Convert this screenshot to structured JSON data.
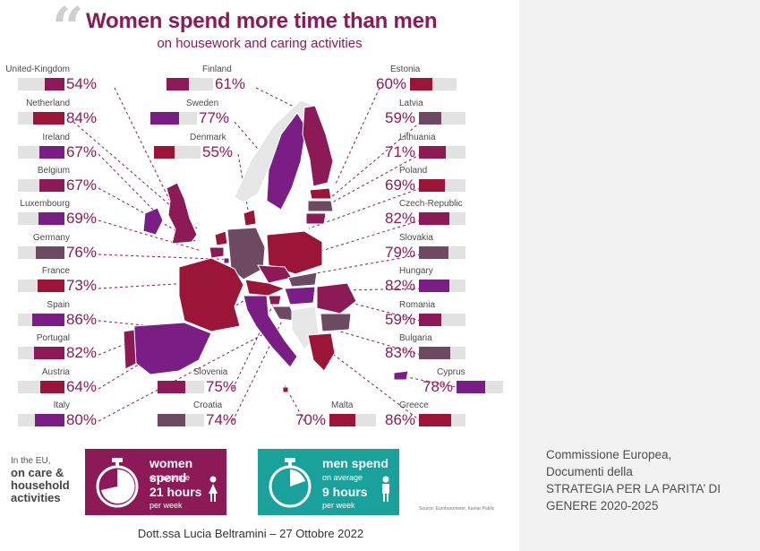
{
  "header": {
    "title": "Women spend more time than men",
    "subtitle": "on housework and caring activities"
  },
  "colors": {
    "brand": "#8c1a56",
    "dark_red": "#9a1538",
    "purple": "#7a1e86",
    "slate": "#6e4a62",
    "teal": "#1aa19b",
    "bar_bg": "#e2e2e2"
  },
  "countries": [
    {
      "name": "United-Kingdom",
      "pct": "54%",
      "value": 54,
      "color": "#8c1a56"
    },
    {
      "name": "Finland",
      "pct": "61%",
      "value": 61,
      "color": "#8c1a56"
    },
    {
      "name": "Estonia",
      "pct": "60%",
      "value": 60,
      "color": "#9a1538"
    },
    {
      "name": "Netherland",
      "pct": "84%",
      "value": 84,
      "color": "#9a1538"
    },
    {
      "name": "Sweden",
      "pct": "77%",
      "value": 77,
      "color": "#7a1e86"
    },
    {
      "name": "Latvia",
      "pct": "59%",
      "value": 59,
      "color": "#6e4a62"
    },
    {
      "name": "Ireland",
      "pct": "67%",
      "value": 67,
      "color": "#7a1e86"
    },
    {
      "name": "Denmark",
      "pct": "55%",
      "value": 55,
      "color": "#9a1538"
    },
    {
      "name": "Lithuania",
      "pct": "71%",
      "value": 71,
      "color": "#8c1a56"
    },
    {
      "name": "Belgium",
      "pct": "67%",
      "value": 67,
      "color": "#8c1a56"
    },
    {
      "name": "Poland",
      "pct": "69%",
      "value": 69,
      "color": "#9a1538"
    },
    {
      "name": "Luxembourg",
      "pct": "69%",
      "value": 69,
      "color": "#7a1e86"
    },
    {
      "name": "Czech-Republic",
      "pct": "82%",
      "value": 82,
      "color": "#8c1a56"
    },
    {
      "name": "Germany",
      "pct": "76%",
      "value": 76,
      "color": "#6e4a62"
    },
    {
      "name": "Slovakia",
      "pct": "79%",
      "value": 79,
      "color": "#6e4a62"
    },
    {
      "name": "France",
      "pct": "73%",
      "value": 73,
      "color": "#9a1538"
    },
    {
      "name": "Hungary",
      "pct": "82%",
      "value": 82,
      "color": "#7a1e86"
    },
    {
      "name": "Spain",
      "pct": "86%",
      "value": 86,
      "color": "#7a1e86"
    },
    {
      "name": "Romania",
      "pct": "59%",
      "value": 59,
      "color": "#8c1a56"
    },
    {
      "name": "Portugal",
      "pct": "82%",
      "value": 82,
      "color": "#8c1a56"
    },
    {
      "name": "Bulgaria",
      "pct": "83%",
      "value": 83,
      "color": "#6e4a62"
    },
    {
      "name": "Austria",
      "pct": "64%",
      "value": 64,
      "color": "#9a1538"
    },
    {
      "name": "Slovenia",
      "pct": "75%",
      "value": 75,
      "color": "#8c1a56"
    },
    {
      "name": "Cyprus",
      "pct": "78%",
      "value": 78,
      "color": "#7a1e86"
    },
    {
      "name": "Italy",
      "pct": "80%",
      "value": 80,
      "color": "#7a1e86"
    },
    {
      "name": "Croatia",
      "pct": "74%",
      "value": 74,
      "color": "#6e4a62"
    },
    {
      "name": "Malta",
      "pct": "70%",
      "value": 70,
      "color": "#9a1538"
    },
    {
      "name": "Greece",
      "pct": "86%",
      "value": 86,
      "color": "#9a1538"
    }
  ],
  "info": {
    "intro_small": "In the EU,",
    "intro_bold": "on care & household activities",
    "women": {
      "label": "women spend",
      "avg": "on average",
      "hours": "21 hours",
      "week": "per week"
    },
    "men": {
      "label": "men spend",
      "avg": "on average",
      "hours": "9 hours",
      "week": "per week"
    },
    "source": "Source: Eurobarometer, Kantar Public"
  },
  "caption": {
    "line1": "Commissione Europea,",
    "line2": "Documenti della",
    "line3": "STRATEGIA PER LA PARITA’ DI",
    "line4": "GENERE 2020-2025"
  },
  "footer": {
    "text": "Dott.ssa Lucia Beltramini – 27 Ottobre 2022"
  }
}
